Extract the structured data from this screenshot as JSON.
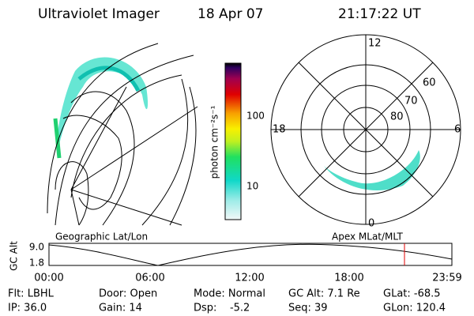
{
  "header": {
    "title": "Ultraviolet Imager",
    "date": "18 Apr 07",
    "time": "21:17:22 UT"
  },
  "polar_plot": {
    "labels": [
      "12",
      "6",
      "0",
      "18",
      "60",
      "70",
      "80"
    ]
  },
  "colorbar": {
    "label": "photon cm⁻²s⁻¹",
    "ticks": [
      "100",
      "10"
    ]
  },
  "altitude_plot": {
    "left_title": "Geographic Lat/Lon",
    "right_title": "Apex MLat/MLT",
    "y_label": "GC Alt",
    "y_labels": [
      "9.0",
      "1.8"
    ],
    "x_labels": [
      "00:00",
      "06:00",
      "12:00",
      "18:00",
      "23:59"
    ]
  },
  "footer": {
    "rows": [
      [
        "Flt: LBHL",
        "Door: Open",
        "Mode: Normal",
        "GC Alt: 7.1 Re",
        "GLat: -68.5"
      ],
      [
        "IP: 36.0",
        "Gain: 14",
        "Dsp:    -5.2",
        "Seq: 39",
        "GLon: 120.4"
      ]
    ]
  }
}
